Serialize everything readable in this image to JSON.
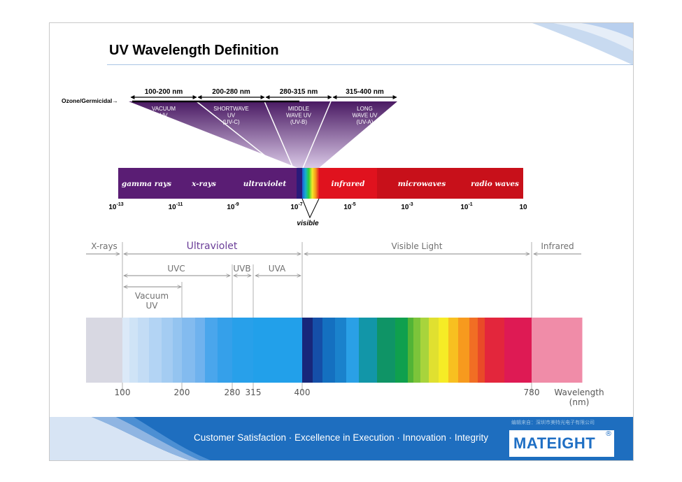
{
  "title": "UV Wavelength Definition",
  "top_diagram": {
    "ranges": [
      {
        "label": "100-200 nm",
        "name": "VACUUM\nUV\n(UV-V)"
      },
      {
        "label": "200-280 nm",
        "name": "SHORTWAVE\nUV\n(UV-C)"
      },
      {
        "label": "280-315 nm",
        "name": "MIDDLE\nWAVE UV\n(UV-B)"
      },
      {
        "label": "315-400 nm",
        "name": "LONG\nWAVE UV\n(UV-A)"
      }
    ],
    "ozone_label": "Ozone/Germicidal→",
    "bands": [
      "gamma rays",
      "x-rays",
      "ultraviolet",
      "",
      "infrared",
      "microwaves",
      "radio waves"
    ],
    "scale": [
      {
        "base": "10",
        "exp": "-13"
      },
      {
        "base": "10",
        "exp": "-11"
      },
      {
        "base": "10",
        "exp": "-9"
      },
      {
        "base": "10",
        "exp": "-7"
      },
      {
        "base": "10",
        "exp": "-5"
      },
      {
        "base": "10",
        "exp": "-3"
      },
      {
        "base": "10",
        "exp": "-1"
      },
      {
        "base": "10",
        "exp": ""
      }
    ],
    "visible_label": "visible"
  },
  "bottom_diagram": {
    "regions": {
      "xrays": "X-rays",
      "uv": "Ultraviolet",
      "visible": "Visible Light",
      "infrared": "Infrared"
    },
    "subregions": {
      "uvc": "UVC",
      "uvb": "UVB",
      "uva": "UVA",
      "vacuum": "Vacuum\nUV"
    },
    "ticks": [
      "100",
      "200",
      "280",
      "315",
      "400",
      "780"
    ],
    "axis_label": "Wavelength\n(nm)",
    "colors": {
      "uv_label": "#6a3d98",
      "uv_band": "#22a0ea",
      "infrared": "#f08ca8",
      "xray": "#d8d8e2"
    }
  },
  "footer": {
    "tagline": "Customer Satisfaction · Excellence in Execution · Innovation · Integrity",
    "credit": "编辑来自：深圳市美特光电子有限公司",
    "logo": "MATEIGHT",
    "logo_mark": "®"
  }
}
